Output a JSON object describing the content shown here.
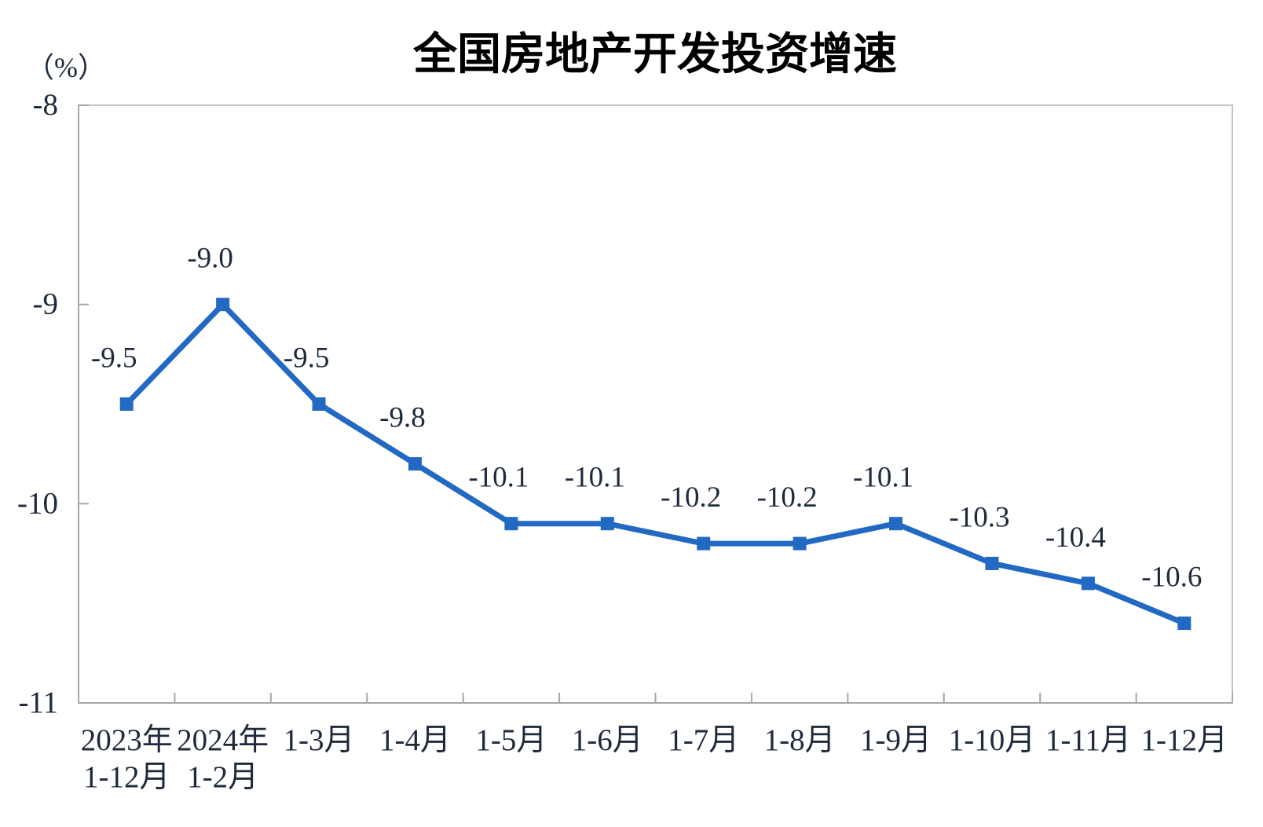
{
  "chart_data": {
    "type": "line",
    "title": "全国房地产开发投资增速",
    "unit_label": "（%）",
    "xlabel": "",
    "ylabel": "",
    "ylim": [
      -11,
      -8
    ],
    "y_ticks": [
      -8,
      -9,
      -10,
      -11
    ],
    "y_tick_labels": [
      "-8",
      "-9",
      "-10",
      "-11"
    ],
    "grid": false,
    "legend": "none",
    "categories": [
      {
        "line1": "2023年",
        "line2": "1-12月"
      },
      {
        "line1": "2024年",
        "line2": "1-2月"
      },
      {
        "line1": "1-3月",
        "line2": ""
      },
      {
        "line1": "1-4月",
        "line2": ""
      },
      {
        "line1": "1-5月",
        "line2": ""
      },
      {
        "line1": "1-6月",
        "line2": ""
      },
      {
        "line1": "1-7月",
        "line2": ""
      },
      {
        "line1": "1-8月",
        "line2": ""
      },
      {
        "line1": "1-9月",
        "line2": ""
      },
      {
        "line1": "1-10月",
        "line2": ""
      },
      {
        "line1": "1-11月",
        "line2": ""
      },
      {
        "line1": "1-12月",
        "line2": ""
      }
    ],
    "series": [
      {
        "name": "全国房地产开发投资增速",
        "values": [
          -9.5,
          -9.0,
          -9.5,
          -9.8,
          -10.1,
          -10.1,
          -10.2,
          -10.2,
          -10.1,
          -10.3,
          -10.4,
          -10.6
        ],
        "point_labels": [
          "-9.5",
          "-9.0",
          "-9.5",
          "-9.8",
          "-10.1",
          "-10.1",
          "-10.2",
          "-10.2",
          "-10.1",
          "-10.3",
          "-10.4",
          "-10.6"
        ]
      }
    ],
    "colors": {
      "line": "#2269c3",
      "marker": "#2269c3",
      "border": "#c3c3c3",
      "axis": "#a6a6a6",
      "text": "#1e2a3c",
      "title": "#000000"
    }
  }
}
